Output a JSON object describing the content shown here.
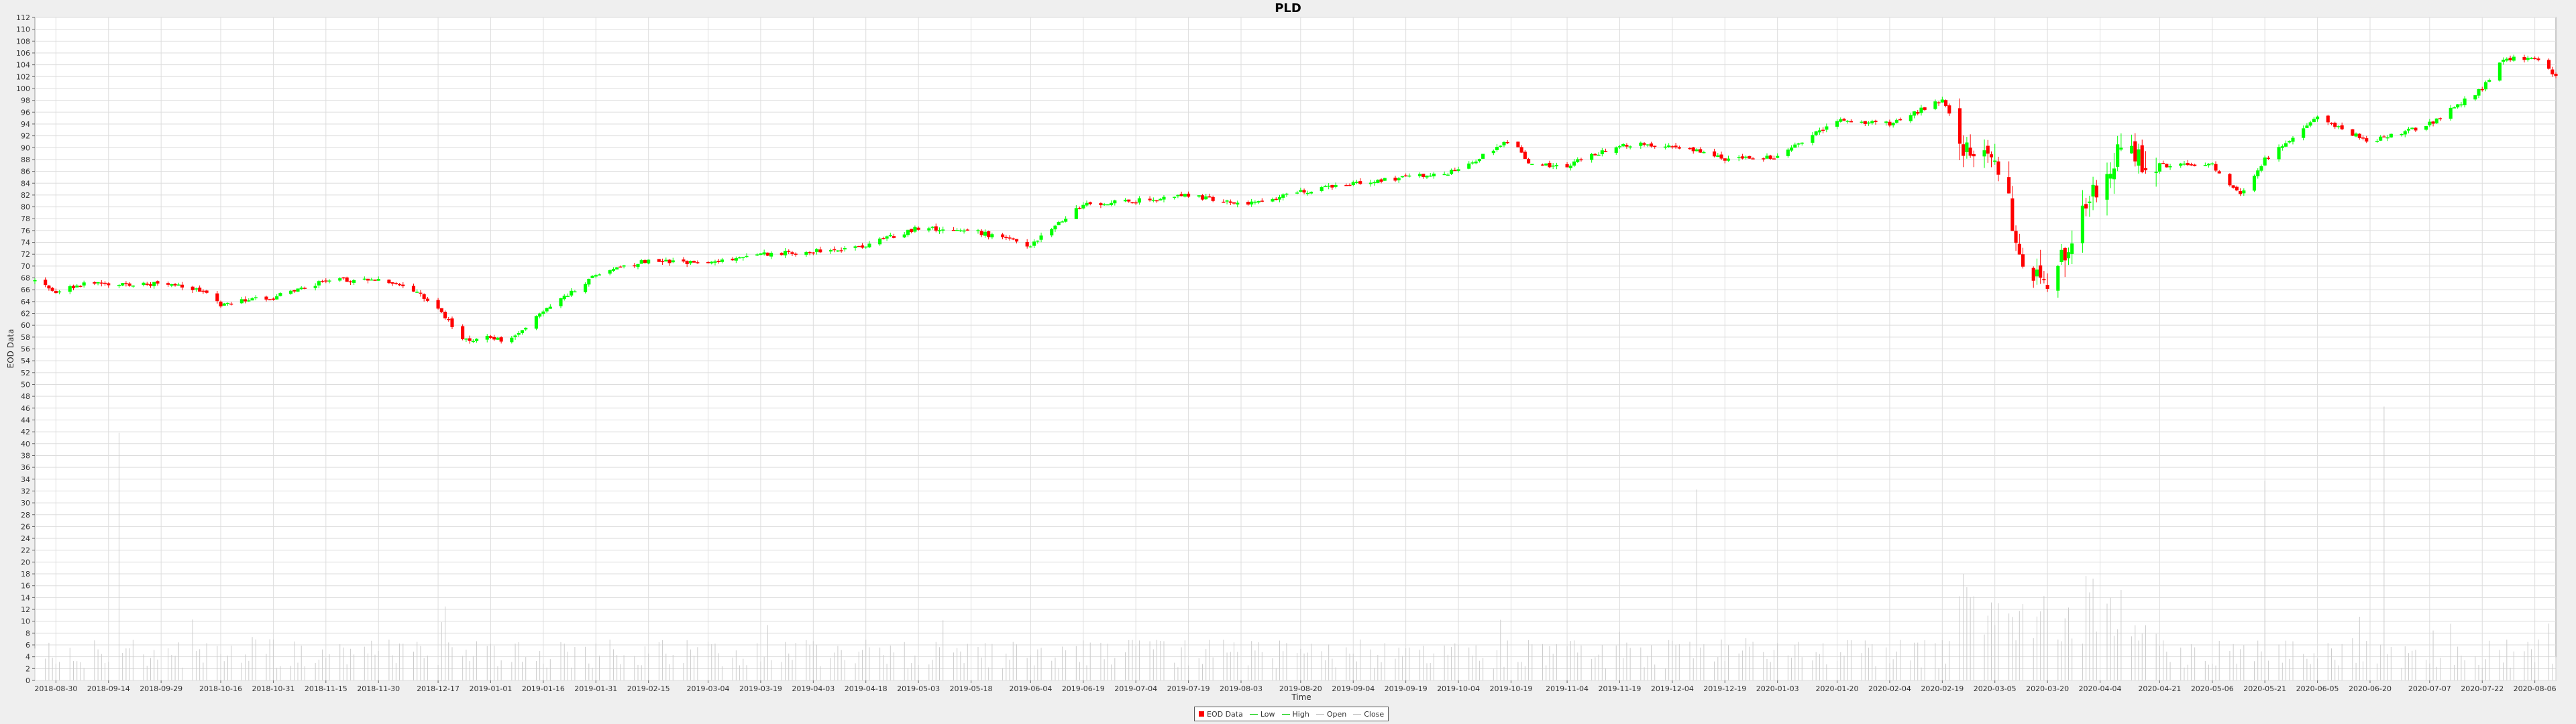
{
  "chart_data": {
    "type": "candlestick",
    "title": "PLD",
    "xlabel": "Time",
    "ylabel": "EOD Data",
    "ylim": [
      0,
      112
    ],
    "y_ticks": [
      0,
      2,
      4,
      6,
      8,
      10,
      12,
      14,
      16,
      18,
      20,
      22,
      24,
      26,
      28,
      30,
      32,
      34,
      36,
      38,
      40,
      42,
      44,
      46,
      48,
      50,
      52,
      54,
      56,
      58,
      60,
      62,
      64,
      66,
      68,
      70,
      72,
      74,
      76,
      78,
      80,
      82,
      84,
      86,
      88,
      90,
      92,
      94,
      96,
      98,
      100,
      102,
      104,
      106,
      108,
      110,
      112
    ],
    "x_ticks": [
      "2018-08-30",
      "2018-09-14",
      "2018-09-29",
      "2018-10-16",
      "2018-10-31",
      "2018-11-15",
      "2018-11-30",
      "2018-12-17",
      "2019-01-01",
      "2019-01-16",
      "2019-01-31",
      "2019-02-15",
      "2019-03-04",
      "2019-03-19",
      "2019-04-03",
      "2019-04-18",
      "2019-05-03",
      "2019-05-18",
      "2019-06-04",
      "2019-06-19",
      "2019-07-04",
      "2019-07-19",
      "2019-08-03",
      "2019-08-20",
      "2019-09-04",
      "2019-09-19",
      "2019-10-04",
      "2019-10-19",
      "2019-11-04",
      "2019-11-19",
      "2019-12-04",
      "2019-12-19",
      "2020-01-03",
      "2020-01-20",
      "2020-02-04",
      "2020-02-19",
      "2020-03-05",
      "2020-03-20",
      "2020-04-04",
      "2020-04-21",
      "2020-05-06",
      "2020-05-21",
      "2020-06-05",
      "2020-06-20",
      "2020-07-07",
      "2020-07-22",
      "2020-08-06"
    ],
    "x_range": [
      "2018-08-24",
      "2020-08-12"
    ],
    "close_anchors": [
      [
        "2018-08-24",
        67.5
      ],
      [
        "2018-08-30",
        65.5
      ],
      [
        "2018-09-07",
        67.2
      ],
      [
        "2018-09-14",
        66.8
      ],
      [
        "2018-09-29",
        67.0
      ],
      [
        "2018-10-10",
        66.0
      ],
      [
        "2018-10-16",
        63.5
      ],
      [
        "2018-10-31",
        64.8
      ],
      [
        "2018-11-15",
        67.5
      ],
      [
        "2018-11-30",
        67.8
      ],
      [
        "2018-12-10",
        66.0
      ],
      [
        "2018-12-17",
        63.0
      ],
      [
        "2018-12-24",
        57.5
      ],
      [
        "2019-01-01",
        58.0
      ],
      [
        "2019-01-06",
        57.0
      ],
      [
        "2019-01-16",
        62.5
      ],
      [
        "2019-01-31",
        68.5
      ],
      [
        "2019-02-15",
        71.0
      ],
      [
        "2019-03-04",
        70.5
      ],
      [
        "2019-03-19",
        72.0
      ],
      [
        "2019-04-03",
        72.5
      ],
      [
        "2019-04-18",
        73.5
      ],
      [
        "2019-05-03",
        76.5
      ],
      [
        "2019-05-18",
        76.0
      ],
      [
        "2019-06-04",
        73.5
      ],
      [
        "2019-06-19",
        80.5
      ],
      [
        "2019-07-04",
        81.0
      ],
      [
        "2019-07-19",
        82.0
      ],
      [
        "2019-08-03",
        80.5
      ],
      [
        "2019-08-20",
        82.5
      ],
      [
        "2019-09-04",
        84.0
      ],
      [
        "2019-09-19",
        85.0
      ],
      [
        "2019-10-04",
        86.0
      ],
      [
        "2019-10-19",
        91.5
      ],
      [
        "2019-10-24",
        87.0
      ],
      [
        "2019-11-04",
        87.0
      ],
      [
        "2019-11-19",
        90.5
      ],
      [
        "2019-12-04",
        90.5
      ],
      [
        "2019-12-19",
        88.0
      ],
      [
        "2020-01-03",
        88.5
      ],
      [
        "2020-01-20",
        94.5
      ],
      [
        "2020-02-04",
        94.0
      ],
      [
        "2020-02-19",
        98.0
      ],
      [
        "2020-02-27",
        88.0
      ],
      [
        "2020-03-05",
        90.0
      ],
      [
        "2020-03-12",
        73.0
      ],
      [
        "2020-03-20",
        65.0
      ],
      [
        "2020-03-26",
        74.0
      ],
      [
        "2020-04-04",
        85.0
      ],
      [
        "2020-04-09",
        89.0
      ],
      [
        "2020-04-21",
        87.0
      ],
      [
        "2020-05-06",
        87.0
      ],
      [
        "2020-05-14",
        82.0
      ],
      [
        "2020-05-21",
        88.0
      ],
      [
        "2020-06-05",
        95.0
      ],
      [
        "2020-06-20",
        91.0
      ],
      [
        "2020-07-07",
        94.0
      ],
      [
        "2020-07-22",
        100.0
      ],
      [
        "2020-07-28",
        105.0
      ],
      [
        "2020-08-06",
        105.0
      ],
      [
        "2020-08-12",
        102.0
      ]
    ],
    "volume_note": "",
    "series": [
      {
        "name": "EOD Data",
        "color": "#ff0000"
      },
      {
        "name": "Low",
        "color": "#00cc00"
      },
      {
        "name": "High",
        "color": "#00cc00"
      },
      {
        "name": "Open",
        "color": "#bbbbbb"
      },
      {
        "name": "Close",
        "color": "#bbbbbb"
      }
    ],
    "colors": {
      "up": "#00ff00",
      "down": "#ff0000",
      "grid": "#dddddd",
      "volume": "#cccccc",
      "plot_bg": "#ffffff"
    }
  }
}
